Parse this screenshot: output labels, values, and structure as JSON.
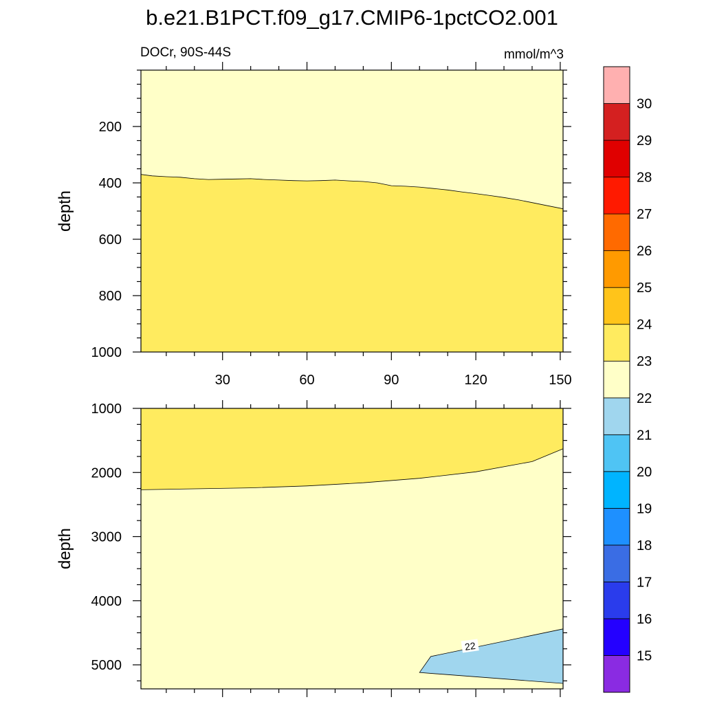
{
  "chart_data": {
    "type": "contour",
    "title": "b.e21.B1PCT.f09_g17.CMIP6-1pctCO2.001",
    "subtitle_left": "DOCr, 90S-44S",
    "subtitle_right": "mmol/m^3",
    "xlim": [
      1,
      151
    ],
    "x_ticks": [
      30,
      60,
      90,
      120,
      150
    ],
    "colorbar": {
      "levels": [
        15,
        16,
        17,
        18,
        19,
        20,
        21,
        22,
        23,
        24,
        25,
        26,
        27,
        28,
        29,
        30
      ],
      "labels": [
        "15",
        "16",
        "17",
        "18",
        "19",
        "20",
        "21",
        "22",
        "23",
        "24",
        "25",
        "26",
        "27",
        "28",
        "29",
        "30"
      ],
      "colors": [
        "#8a2be2",
        "#2400ff",
        "#2a3cec",
        "#3a6de4",
        "#1e90ff",
        "#00b4ff",
        "#4fc4f4",
        "#a0d6ee",
        "#ffffc8",
        "#ffeb5f",
        "#ffc41a",
        "#ff9a00",
        "#ff6a00",
        "#ff1a00",
        "#e00000",
        "#d42020",
        "#ffb0b0"
      ]
    },
    "panels": [
      {
        "name": "upper",
        "ylabel": "depth",
        "ylim": [
          0,
          1000
        ],
        "y_reversed": true,
        "y_ticks": [
          200,
          400,
          600,
          800,
          1000
        ],
        "y_tick_labels": [
          "200",
          "400",
          "600",
          "800",
          "1000"
        ],
        "fill_base": "#ffeb5f",
        "regions": [
          {
            "level": "22-23",
            "color": "#ffffc8",
            "boundary_years": [
              1,
              5,
              10,
              15,
              20,
              25,
              30,
              35,
              40,
              45,
              50,
              55,
              60,
              65,
              70,
              75,
              80,
              85,
              90,
              95,
              100,
              105,
              110,
              115,
              120,
              125,
              130,
              135,
              140,
              145,
              151
            ],
            "boundary_depths": [
              370,
              375,
              378,
              380,
              385,
              388,
              387,
              386,
              385,
              388,
              390,
              392,
              393,
              392,
              390,
              393,
              395,
              400,
              410,
              412,
              415,
              420,
              425,
              432,
              438,
              445,
              452,
              460,
              470,
              480,
              492
            ],
            "side": "above"
          }
        ]
      },
      {
        "name": "lower",
        "ylabel": "depth",
        "ylim": [
          1000,
          5375
        ],
        "y_reversed": true,
        "y_ticks": [
          1000,
          2000,
          3000,
          4000,
          5000
        ],
        "y_tick_labels": [
          "1000",
          "2000",
          "3000",
          "4000",
          "5000"
        ],
        "fill_base": "#ffffc8",
        "regions": [
          {
            "level": "23-24",
            "color": "#ffeb5f",
            "boundary_years": [
              1,
              20,
              40,
              60,
              80,
              100,
              120,
              140,
              151
            ],
            "boundary_depths": [
              2270,
              2255,
              2240,
              2210,
              2160,
              2090,
              1990,
              1830,
              1630
            ],
            "side": "above"
          },
          {
            "level": "21-22",
            "color": "#a0d6ee",
            "polygon_years": [
              100,
              104,
              151,
              151,
              100
            ],
            "polygon_depths": [
              5120,
              4870,
              4440,
              5290,
              5120
            ],
            "contour_label": "22",
            "label_year": 118,
            "label_depth": 4720
          }
        ]
      }
    ]
  }
}
